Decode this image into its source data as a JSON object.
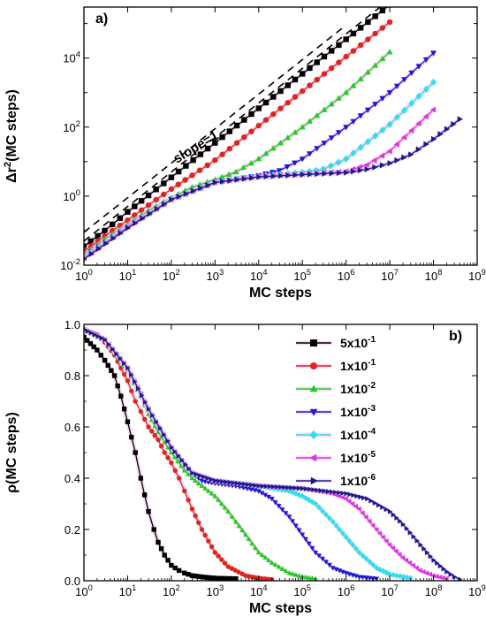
{
  "chart_data": [
    {
      "type": "line",
      "panel_label": "a)",
      "xlabel": "MC steps",
      "ylabel": "Δr²(MC steps)",
      "xscale": "log",
      "yscale": "log",
      "xlim": [
        1,
        1000000000
      ],
      "ylim": [
        0.01,
        300000
      ],
      "x_ticks": [
        "10^0",
        "10^1",
        "10^2",
        "10^3",
        "10^4",
        "10^5",
        "10^6",
        "10^7",
        "10^8",
        "10^9"
      ],
      "y_ticks": [
        "10^-2",
        "10^0",
        "10^2",
        "10^4"
      ],
      "annotation": "slope=1",
      "reference_lines": [
        {
          "style": "dashed",
          "points": [
            [
              1,
              0.09
            ],
            [
              1000000,
              90000
            ]
          ]
        },
        {
          "style": "dashed",
          "points": [
            [
              1,
              0.05
            ],
            [
              10000000,
              500000
            ]
          ]
        }
      ],
      "series": [
        {
          "label_ref": "5x10^-1",
          "color": "#000000",
          "marker": "square",
          "points": [
            [
              1,
              0.035
            ],
            [
              3,
              0.1
            ],
            [
              10,
              0.35
            ],
            [
              30,
              1.05
            ],
            [
              100,
              3.5
            ],
            [
              1000,
              35
            ],
            [
              10000,
              350
            ],
            [
              100000,
              3500
            ],
            [
              1000000,
              35000
            ],
            [
              10000000,
              350000
            ]
          ]
        },
        {
          "label_ref": "1x10^-1",
          "color": "#e0241e",
          "marker": "circle",
          "points": [
            [
              1,
              0.025
            ],
            [
              3,
              0.07
            ],
            [
              10,
              0.2
            ],
            [
              30,
              0.55
            ],
            [
              100,
              1.6
            ],
            [
              300,
              4
            ],
            [
              1000,
              11
            ],
            [
              10000,
              110
            ],
            [
              100000,
              1100
            ],
            [
              1000000,
              11000
            ],
            [
              10000000,
              110000
            ]
          ]
        },
        {
          "label_ref": "1x10^-2",
          "color": "#22cc22",
          "marker": "triangle-up",
          "points": [
            [
              1,
              0.02
            ],
            [
              3,
              0.055
            ],
            [
              10,
              0.15
            ],
            [
              30,
              0.38
            ],
            [
              100,
              0.9
            ],
            [
              300,
              1.8
            ],
            [
              1000,
              3
            ],
            [
              3000,
              5
            ],
            [
              10000,
              12
            ],
            [
              100000,
              100
            ],
            [
              1000000,
              1000
            ],
            [
              10000000,
              15000
            ]
          ]
        },
        {
          "label_ref": "1x10^-3",
          "color": "#1a1ad6",
          "marker": "triangle-down",
          "points": [
            [
              1,
              0.018
            ],
            [
              10,
              0.13
            ],
            [
              100,
              0.8
            ],
            [
              1000,
              2.5
            ],
            [
              10000,
              4
            ],
            [
              30000,
              5.5
            ],
            [
              100000,
              12
            ],
            [
              1000000,
              100
            ],
            [
              10000000,
              1000
            ],
            [
              100000000,
              14000
            ]
          ]
        },
        {
          "label_ref": "1x10^-4",
          "color": "#33ddee",
          "marker": "diamond",
          "points": [
            [
              1,
              0.017
            ],
            [
              10,
              0.13
            ],
            [
              100,
              0.8
            ],
            [
              1000,
              2.5
            ],
            [
              10000,
              3.8
            ],
            [
              100000,
              4.8
            ],
            [
              300000,
              6
            ],
            [
              1000000,
              12
            ],
            [
              10000000,
              120
            ],
            [
              100000000,
              2000
            ]
          ]
        },
        {
          "label_ref": "1x10^-5",
          "color": "#dd33dd",
          "marker": "triangle-left",
          "points": [
            [
              1,
              0.016
            ],
            [
              10,
              0.13
            ],
            [
              100,
              0.8
            ],
            [
              1000,
              2.5
            ],
            [
              10000,
              3.7
            ],
            [
              100000,
              4.3
            ],
            [
              1000000,
              5.2
            ],
            [
              3000000,
              8
            ],
            [
              10000000,
              20
            ],
            [
              100000000,
              320
            ]
          ]
        },
        {
          "label_ref": "1x10^-6",
          "color": "#1a1a8c",
          "marker": "triangle-right",
          "points": [
            [
              1,
              0.015
            ],
            [
              10,
              0.12
            ],
            [
              100,
              0.8
            ],
            [
              1000,
              2.5
            ],
            [
              10000,
              3.6
            ],
            [
              100000,
              4.2
            ],
            [
              1000000,
              4.8
            ],
            [
              3000000,
              6
            ],
            [
              10000000,
              9
            ],
            [
              30000000,
              16
            ],
            [
              100000000,
              45
            ],
            [
              400000000,
              170
            ]
          ]
        }
      ]
    },
    {
      "type": "line",
      "panel_label": "b)",
      "xlabel": "MC steps",
      "ylabel": "ρ(MC steps)",
      "xscale": "log",
      "xlim": [
        1,
        1000000000
      ],
      "ylim": [
        0,
        1.0
      ],
      "x_ticks": [
        "10^0",
        "10^1",
        "10^2",
        "10^3",
        "10^4",
        "10^5",
        "10^6",
        "10^7",
        "10^8",
        "10^9"
      ],
      "y_ticks": [
        "0.0",
        "0.2",
        "0.4",
        "0.6",
        "0.8",
        "1.0"
      ],
      "legend": {
        "position": "top-right"
      },
      "series": [
        {
          "name": "5x10^-1",
          "color": "#000000",
          "marker": "square",
          "points": [
            [
              1,
              0.95
            ],
            [
              2,
              0.9
            ],
            [
              3,
              0.86
            ],
            [
              5,
              0.8
            ],
            [
              7,
              0.72
            ],
            [
              10,
              0.62
            ],
            [
              15,
              0.5
            ],
            [
              20,
              0.4
            ],
            [
              30,
              0.27
            ],
            [
              40,
              0.2
            ],
            [
              50,
              0.15
            ],
            [
              70,
              0.1
            ],
            [
              100,
              0.06
            ],
            [
              150,
              0.04
            ],
            [
              200,
              0.03
            ],
            [
              300,
              0.02
            ],
            [
              500,
              0.015
            ],
            [
              1000,
              0.01
            ],
            [
              3000,
              0.008
            ]
          ]
        },
        {
          "name": "1x10^-1",
          "color": "#e0241e",
          "marker": "circle",
          "points": [
            [
              1,
              0.98
            ],
            [
              2,
              0.96
            ],
            [
              3,
              0.93
            ],
            [
              5,
              0.88
            ],
            [
              7,
              0.83
            ],
            [
              10,
              0.78
            ],
            [
              15,
              0.7
            ],
            [
              20,
              0.66
            ],
            [
              30,
              0.6
            ],
            [
              50,
              0.55
            ],
            [
              70,
              0.5
            ],
            [
              100,
              0.46
            ],
            [
              150,
              0.4
            ],
            [
              200,
              0.35
            ],
            [
              300,
              0.28
            ],
            [
              500,
              0.2
            ],
            [
              1000,
              0.11
            ],
            [
              2000,
              0.055
            ],
            [
              5000,
              0.02
            ],
            [
              10000,
              0.01
            ],
            [
              20000,
              0.005
            ]
          ]
        },
        {
          "name": "1x10^-2",
          "color": "#22cc22",
          "marker": "triangle-up",
          "points": [
            [
              1,
              0.98
            ],
            [
              3,
              0.94
            ],
            [
              10,
              0.82
            ],
            [
              20,
              0.72
            ],
            [
              30,
              0.65
            ],
            [
              50,
              0.58
            ],
            [
              100,
              0.5
            ],
            [
              200,
              0.43
            ],
            [
              300,
              0.4
            ],
            [
              500,
              0.37
            ],
            [
              1000,
              0.33
            ],
            [
              2000,
              0.27
            ],
            [
              3000,
              0.23
            ],
            [
              5000,
              0.18
            ],
            [
              10000,
              0.11
            ],
            [
              20000,
              0.07
            ],
            [
              50000,
              0.03
            ],
            [
              100000,
              0.015
            ],
            [
              200000,
              0.008
            ]
          ]
        },
        {
          "name": "1x10^-3",
          "color": "#1a1ad6",
          "marker": "triangle-down",
          "points": [
            [
              1,
              0.98
            ],
            [
              3,
              0.94
            ],
            [
              10,
              0.83
            ],
            [
              20,
              0.73
            ],
            [
              30,
              0.67
            ],
            [
              50,
              0.6
            ],
            [
              100,
              0.52
            ],
            [
              200,
              0.45
            ],
            [
              300,
              0.42
            ],
            [
              500,
              0.39
            ],
            [
              1000,
              0.38
            ],
            [
              3000,
              0.37
            ],
            [
              10000,
              0.35
            ],
            [
              20000,
              0.32
            ],
            [
              50000,
              0.25
            ],
            [
              100000,
              0.18
            ],
            [
              200000,
              0.11
            ],
            [
              500000,
              0.05
            ],
            [
              1000000,
              0.03
            ],
            [
              2000000,
              0.015
            ],
            [
              5000000,
              0.008
            ]
          ]
        },
        {
          "name": "1x10^-4",
          "color": "#33ddee",
          "marker": "diamond",
          "points": [
            [
              1,
              0.98
            ],
            [
              3,
              0.94
            ],
            [
              10,
              0.83
            ],
            [
              30,
              0.67
            ],
            [
              100,
              0.52
            ],
            [
              300,
              0.42
            ],
            [
              1000,
              0.39
            ],
            [
              10000,
              0.37
            ],
            [
              50000,
              0.35
            ],
            [
              100000,
              0.33
            ],
            [
              200000,
              0.3
            ],
            [
              500000,
              0.23
            ],
            [
              1000000,
              0.17
            ],
            [
              2000000,
              0.11
            ],
            [
              5000000,
              0.05
            ],
            [
              10000000,
              0.025
            ],
            [
              30000000,
              0.01
            ]
          ]
        },
        {
          "name": "1x10^-5",
          "color": "#dd33dd",
          "marker": "triangle-left",
          "points": [
            [
              1,
              0.98
            ],
            [
              3,
              0.94
            ],
            [
              10,
              0.83
            ],
            [
              30,
              0.67
            ],
            [
              100,
              0.52
            ],
            [
              300,
              0.42
            ],
            [
              1000,
              0.39
            ],
            [
              10000,
              0.37
            ],
            [
              100000,
              0.36
            ],
            [
              500000,
              0.34
            ],
            [
              1000000,
              0.32
            ],
            [
              2000000,
              0.28
            ],
            [
              5000000,
              0.2
            ],
            [
              10000000,
              0.14
            ],
            [
              20000000,
              0.09
            ],
            [
              50000000,
              0.04
            ],
            [
              100000000,
              0.02
            ],
            [
              200000000,
              0.008
            ]
          ]
        },
        {
          "name": "1x10^-6",
          "color": "#1a1a8c",
          "marker": "triangle-right",
          "points": [
            [
              1,
              0.98
            ],
            [
              3,
              0.94
            ],
            [
              10,
              0.83
            ],
            [
              30,
              0.67
            ],
            [
              100,
              0.52
            ],
            [
              300,
              0.42
            ],
            [
              1000,
              0.39
            ],
            [
              10000,
              0.37
            ],
            [
              100000,
              0.36
            ],
            [
              1000000,
              0.34
            ],
            [
              3000000,
              0.32
            ],
            [
              10000000,
              0.27
            ],
            [
              20000000,
              0.22
            ],
            [
              50000000,
              0.14
            ],
            [
              100000000,
              0.08
            ],
            [
              200000000,
              0.035
            ],
            [
              300000000,
              0.015
            ],
            [
              400000000,
              0.005
            ]
          ]
        }
      ]
    }
  ]
}
